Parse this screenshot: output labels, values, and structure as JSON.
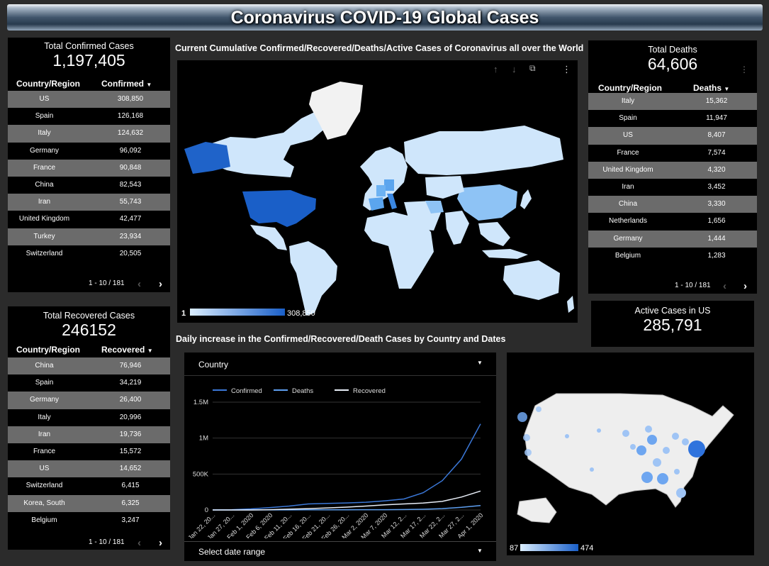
{
  "header": {
    "title": "Coronavirus COVID-19 Global Cases"
  },
  "confirmed": {
    "title": "Total Confirmed Cases",
    "value": "1,197,405",
    "col1": "Country/Region",
    "col2": "Confirmed",
    "rows": [
      {
        "country": "US",
        "value": "308,850"
      },
      {
        "country": "Spain",
        "value": "126,168"
      },
      {
        "country": "Italy",
        "value": "124,632"
      },
      {
        "country": "Germany",
        "value": "96,092"
      },
      {
        "country": "France",
        "value": "90,848"
      },
      {
        "country": "China",
        "value": "82,543"
      },
      {
        "country": "Iran",
        "value": "55,743"
      },
      {
        "country": "United Kingdom",
        "value": "42,477"
      },
      {
        "country": "Turkey",
        "value": "23,934"
      },
      {
        "country": "Switzerland",
        "value": "20,505"
      }
    ],
    "pager": "1 - 10 / 181"
  },
  "recovered": {
    "title": "Total Recovered Cases",
    "value": "246152",
    "col1": "Country/Region",
    "col2": "Recovered",
    "rows": [
      {
        "country": "China",
        "value": "76,946"
      },
      {
        "country": "Spain",
        "value": "34,219"
      },
      {
        "country": "Germany",
        "value": "26,400"
      },
      {
        "country": "Italy",
        "value": "20,996"
      },
      {
        "country": "Iran",
        "value": "19,736"
      },
      {
        "country": "France",
        "value": "15,572"
      },
      {
        "country": "US",
        "value": "14,652"
      },
      {
        "country": "Switzerland",
        "value": "6,415"
      },
      {
        "country": "Korea, South",
        "value": "6,325"
      },
      {
        "country": "Belgium",
        "value": "3,247"
      }
    ],
    "pager": "1 - 10 / 181"
  },
  "deaths": {
    "title": "Total Deaths",
    "value": "64,606",
    "col1": "Country/Region",
    "col2": "Deaths",
    "rows": [
      {
        "country": "Italy",
        "value": "15,362"
      },
      {
        "country": "Spain",
        "value": "11,947"
      },
      {
        "country": "US",
        "value": "8,407"
      },
      {
        "country": "France",
        "value": "7,574"
      },
      {
        "country": "United Kingdom",
        "value": "4,320"
      },
      {
        "country": "Iran",
        "value": "3,452"
      },
      {
        "country": "China",
        "value": "3,330"
      },
      {
        "country": "Netherlands",
        "value": "1,656"
      },
      {
        "country": "Germany",
        "value": "1,444"
      },
      {
        "country": "Belgium",
        "value": "1,283"
      }
    ],
    "pager": "1 - 10 / 181"
  },
  "active_us": {
    "title": "Active Cases in US",
    "value": "285,791"
  },
  "world_map": {
    "title": "Current Cumulative Confirmed/Recovered/Deaths/Active Cases of Coronavirus all over the World",
    "legend_min": "1",
    "legend_max": "308,850",
    "colors": {
      "low": "#cfe6fb",
      "high": "#1a5fc8"
    }
  },
  "daily": {
    "title": "Daily increase in the Confirmed/Recovered/Death Cases by Country and Dates",
    "country_filter": "Country",
    "date_filter": "Select date range"
  },
  "us_map": {
    "legend_min": "87",
    "legend_max": "474"
  },
  "icons": [
    "arrow-up-icon",
    "arrow-down-icon",
    "expand-icon",
    "more-vert-icon",
    "sort-down-icon",
    "chevron-left-icon",
    "chevron-right-icon",
    "dropdown-icon"
  ],
  "chart_data": {
    "type": "line",
    "x": [
      "Jan 22, 20...",
      "Jan 27, 20...",
      "Feb 1, 2020",
      "Feb 6, 2020",
      "Feb 11, 20...",
      "Feb 16, 20...",
      "Feb 21, 20...",
      "Feb 26, 20...",
      "Mar 2, 2020",
      "Mar 7, 2020",
      "Mar 12, 2...",
      "Mar 17, 2...",
      "Mar 22, 2...",
      "Mar 27, 2...",
      "Apr 1, 2020"
    ],
    "series": [
      {
        "name": "Confirmed",
        "color": "#3b78d8",
        "values": [
          0.0006,
          0.003,
          0.012,
          0.028,
          0.045,
          0.07,
          0.077,
          0.082,
          0.09,
          0.106,
          0.128,
          0.2,
          0.34,
          0.59,
          1.0
        ]
      },
      {
        "name": "Deaths",
        "color": "#5e9ff0",
        "values": [
          2e-05,
          0.0001,
          0.0003,
          0.0006,
          0.0011,
          0.0017,
          0.0023,
          0.0028,
          0.0031,
          0.0035,
          0.0049,
          0.0081,
          0.0159,
          0.0309,
          0.0516
        ]
      },
      {
        "name": "Recovered",
        "color": "#e8eef8",
        "values": [
          3e-05,
          0.0001,
          0.0004,
          0.003,
          0.009,
          0.016,
          0.024,
          0.033,
          0.045,
          0.06,
          0.07,
          0.08,
          0.1,
          0.15,
          0.22
        ]
      }
    ],
    "x_end": "Apr 4, 2020",
    "y_ticks": [
      "0",
      "500K",
      "1M",
      "1.5M"
    ],
    "y_tick_values": [
      0,
      500000,
      1000000,
      1500000
    ],
    "ylim": [
      0,
      1500000
    ],
    "final_values": {
      "Confirmed": 1197405,
      "Deaths": 64606,
      "Recovered": 246152
    },
    "grid": true,
    "legend_position": "top-left"
  }
}
